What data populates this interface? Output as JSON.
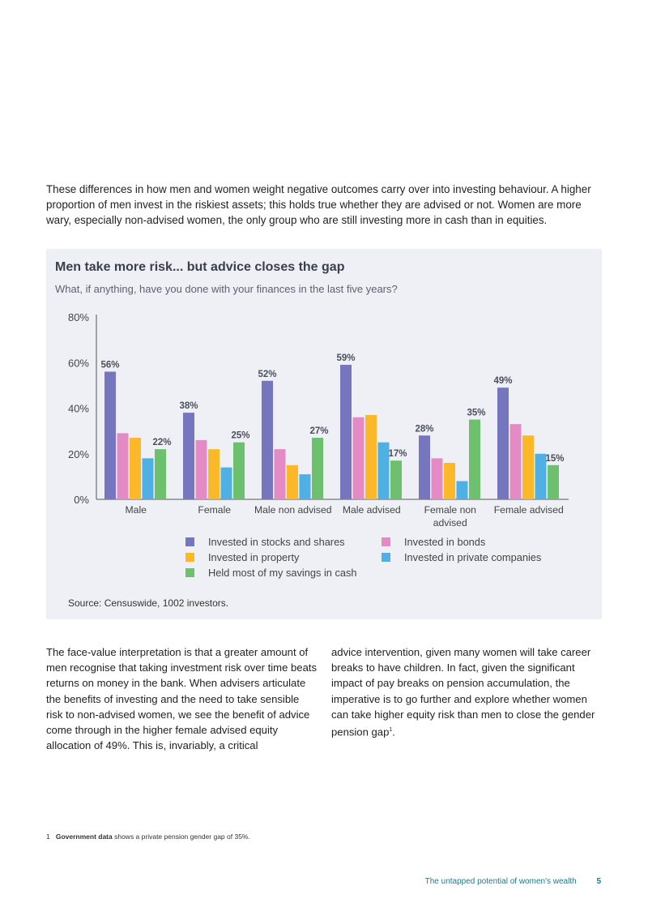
{
  "intro_text": "These differences in how men and women weight negative outcomes carry over into investing behaviour. A higher proportion of men invest in the riskiest assets; this holds true whether they are advised or not. Women are more wary, especially non-advised women, the only group who are still investing more in cash than in equities.",
  "chart_data": {
    "type": "bar",
    "title": "Men take more risk... but advice closes the gap",
    "subtitle": "What, if anything, have you done with your finances in the last five years?",
    "categories": [
      "Male",
      "Female",
      "Male non advised",
      "Male advised",
      "Female non advised",
      "Female advised"
    ],
    "series": [
      {
        "name": "Invested in stocks and shares",
        "color": "#7676bf",
        "values": [
          56,
          38,
          52,
          59,
          28,
          49
        ],
        "labeled": true
      },
      {
        "name": "Invested in bonds",
        "color": "#e48ac4",
        "values": [
          29,
          26,
          22,
          36,
          18,
          33
        ],
        "labeled": false
      },
      {
        "name": "Invested in property",
        "color": "#fbb829",
        "values": [
          27,
          22,
          15,
          37,
          16,
          28
        ],
        "labeled": false
      },
      {
        "name": "Invested in private companies",
        "color": "#4fb0e3",
        "values": [
          18,
          14,
          11,
          25,
          8,
          20
        ],
        "labeled": false
      },
      {
        "name": "Held most of my savings in cash",
        "color": "#6cc06e",
        "values": [
          22,
          25,
          27,
          17,
          35,
          15
        ],
        "labeled": true
      }
    ],
    "ylim": [
      0,
      80
    ],
    "yticks": [
      "0%",
      "20%",
      "40%",
      "60%",
      "80%"
    ],
    "ytick_values": [
      0,
      20,
      40,
      60,
      80
    ],
    "value_suffix": "%",
    "grid": false,
    "legend": "bottom",
    "source": "Source: Censuswide, 1002 investors."
  },
  "legend_items": [
    {
      "label": "Invested in stocks and shares",
      "color": "#7676bf"
    },
    {
      "label": "Invested in bonds",
      "color": "#e48ac4"
    },
    {
      "label": "Invested in property",
      "color": "#fbb829"
    },
    {
      "label": "Invested in private companies",
      "color": "#4fb0e3"
    },
    {
      "label": "Held most of my savings in cash",
      "color": "#6cc06e"
    }
  ],
  "body_left": "The face-value interpretation is that a greater amount of men recognise that taking investment risk over time beats returns on money in the bank. When advisers articulate the benefits of investing and the need to take sensible risk to non-advised women, we see the benefit of advice come through in the higher female advised equity allocation of 49%. This is, invariably, a critical",
  "body_right": "advice intervention, given many women will take career breaks to have children. In fact, given the significant impact of pay breaks on pension accumulation, the imperative is to go further and explore whether women can take higher equity risk than men to close the gender pension gap",
  "body_right_sup": "1",
  "footnote": {
    "number": "1",
    "bold": "Government data",
    "text": " shows a private pension gender gap of 35%."
  },
  "footer": {
    "title": "The untapped potential of women's wealth",
    "page": "5"
  }
}
